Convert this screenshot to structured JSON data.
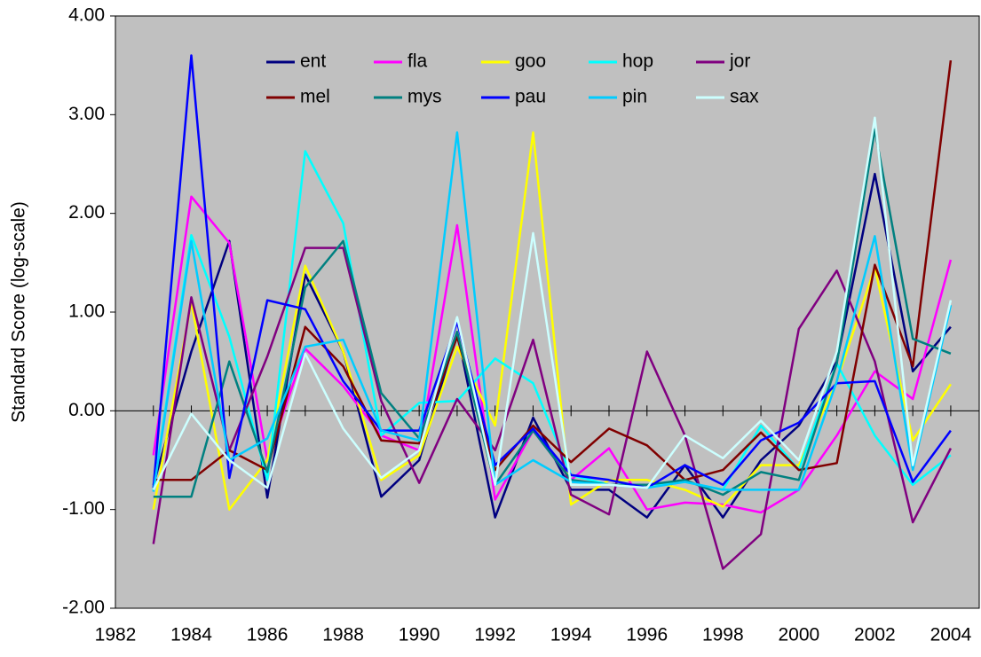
{
  "chart_data": {
    "type": "line",
    "y_label": "Standard Score (log-scale)",
    "x": [
      1983,
      1984,
      1985,
      1986,
      1987,
      1988,
      1989,
      1990,
      1991,
      1992,
      1993,
      1994,
      1995,
      1996,
      1997,
      1998,
      1999,
      2000,
      2001,
      2002,
      2003,
      2004
    ],
    "xlim": [
      1982,
      2004.75
    ],
    "xticks": [
      1982,
      1984,
      1986,
      1988,
      1990,
      1992,
      1994,
      1996,
      1998,
      2000,
      2002,
      2004
    ],
    "ylim": [
      -2,
      4
    ],
    "yticks": [
      {
        "value": -2,
        "label": "-2.00"
      },
      {
        "value": -1,
        "label": "-1.00"
      },
      {
        "value": 0,
        "label": "0.00"
      },
      {
        "value": 1,
        "label": "1.00"
      },
      {
        "value": 2,
        "label": "2.00"
      },
      {
        "value": 3,
        "label": "3.00"
      },
      {
        "value": 4,
        "label": "4.00"
      }
    ],
    "background": "#c0c0c0",
    "legend": "top",
    "series": [
      {
        "name": "ent",
        "color": "#000080",
        "values": [
          -0.75,
          0.6,
          1.72,
          -0.88,
          1.38,
          0.6,
          -0.87,
          -0.5,
          0.8,
          -1.08,
          -0.07,
          -0.8,
          -0.8,
          -1.08,
          -0.55,
          -1.08,
          -0.5,
          -0.15,
          0.5,
          2.4,
          0.4,
          0.85
        ]
      },
      {
        "name": "fla",
        "color": "#ff00ff",
        "values": [
          -0.45,
          2.17,
          1.7,
          -0.5,
          0.63,
          0.25,
          -0.25,
          -0.4,
          1.88,
          -0.9,
          -0.2,
          -0.7,
          -0.38,
          -1.0,
          -0.93,
          -0.95,
          -1.03,
          -0.8,
          -0.25,
          0.4,
          0.12,
          1.53
        ]
      },
      {
        "name": "goo",
        "color": "#ffff00",
        "values": [
          -1.0,
          1.1,
          -1.0,
          -0.5,
          1.47,
          0.6,
          -0.7,
          -0.45,
          0.65,
          -0.15,
          2.82,
          -0.95,
          -0.7,
          -0.7,
          -0.8,
          -0.97,
          -0.55,
          -0.55,
          0.3,
          1.45,
          -0.3,
          0.27
        ]
      },
      {
        "name": "hop",
        "color": "#00ffff",
        "values": [
          -0.8,
          1.78,
          0.75,
          -0.7,
          2.63,
          1.9,
          -0.25,
          0.08,
          0.1,
          0.53,
          0.28,
          -0.65,
          -0.75,
          -0.75,
          -0.72,
          -0.8,
          -0.15,
          -0.6,
          0.48,
          -0.25,
          -0.75,
          -0.45
        ]
      },
      {
        "name": "jor",
        "color": "#800080",
        "values": [
          -1.35,
          1.15,
          -0.4,
          0.55,
          1.65,
          1.65,
          0.1,
          -0.73,
          0.12,
          -0.4,
          0.72,
          -0.85,
          -1.05,
          0.6,
          -0.25,
          -1.6,
          -1.25,
          0.83,
          1.42,
          0.5,
          -1.13,
          -0.38
        ]
      },
      {
        "name": "mel",
        "color": "#800000",
        "values": [
          -0.7,
          -0.7,
          -0.4,
          -0.6,
          0.85,
          0.45,
          -0.3,
          -0.33,
          0.75,
          -0.6,
          -0.15,
          -0.52,
          -0.18,
          -0.35,
          -0.7,
          -0.6,
          -0.22,
          -0.6,
          -0.53,
          1.48,
          0.45,
          3.55
        ]
      },
      {
        "name": "mys",
        "color": "#008080",
        "values": [
          -0.87,
          -0.87,
          0.5,
          -0.62,
          1.25,
          1.72,
          0.18,
          -0.28,
          0.8,
          -0.75,
          -0.2,
          -0.7,
          -0.75,
          -0.75,
          -0.7,
          -0.85,
          -0.62,
          -0.7,
          0.48,
          2.85,
          0.73,
          0.58
        ]
      },
      {
        "name": "pau",
        "color": "#0000ff",
        "values": [
          -0.78,
          3.6,
          -0.68,
          1.12,
          1.03,
          0.3,
          -0.2,
          -0.2,
          0.9,
          -0.55,
          -0.18,
          -0.65,
          -0.7,
          -0.78,
          -0.55,
          -0.75,
          -0.3,
          -0.12,
          0.28,
          0.3,
          -0.72,
          -0.2
        ]
      },
      {
        "name": "pin",
        "color": "#00ccff",
        "values": [
          -0.82,
          1.72,
          -0.5,
          -0.28,
          0.65,
          0.72,
          -0.2,
          -0.3,
          2.82,
          -0.75,
          -0.5,
          -0.72,
          -0.75,
          -0.78,
          -0.72,
          -0.8,
          -0.8,
          -0.8,
          0.3,
          1.77,
          -0.6,
          1.07
        ]
      },
      {
        "name": "sax",
        "color": "#ccffff",
        "values": [
          -0.8,
          -0.03,
          -0.5,
          -0.78,
          0.58,
          -0.18,
          -0.68,
          -0.4,
          0.95,
          -0.75,
          1.8,
          -0.75,
          -0.75,
          -0.78,
          -0.25,
          -0.48,
          -0.1,
          -0.5,
          0.6,
          2.97,
          -0.55,
          1.12
        ]
      }
    ]
  }
}
